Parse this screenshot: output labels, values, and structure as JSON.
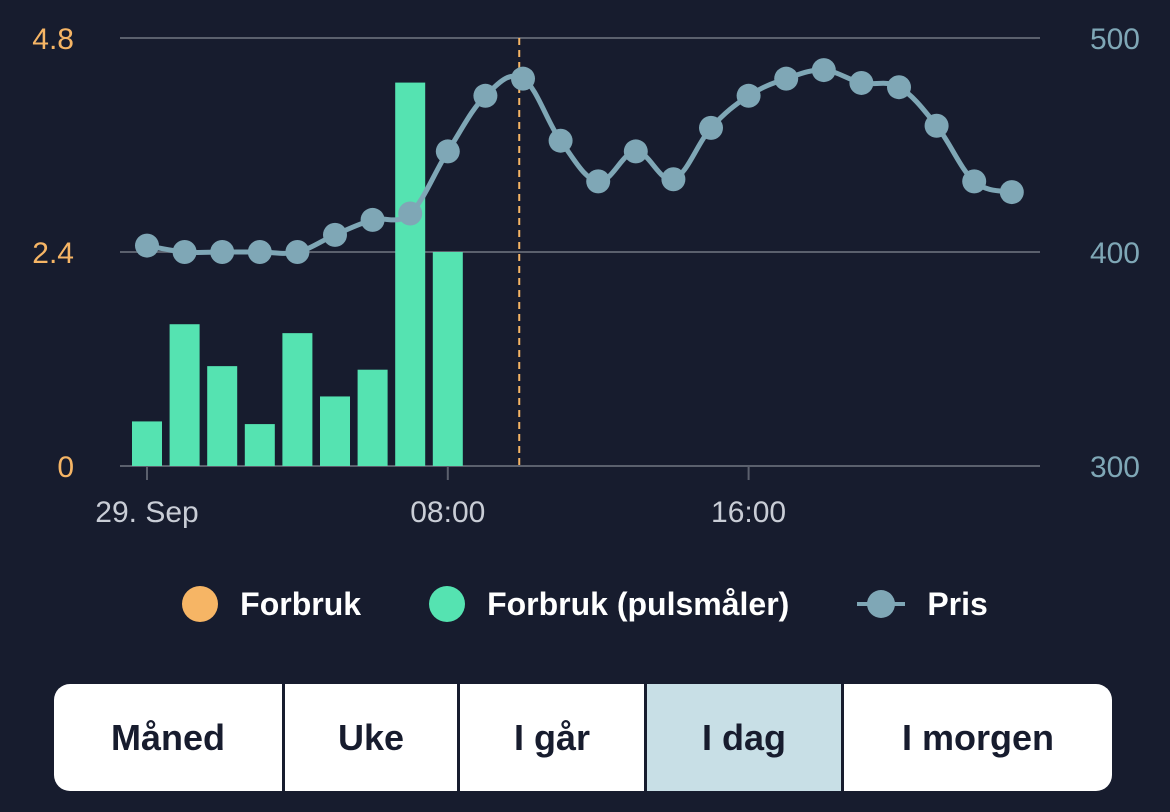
{
  "colors": {
    "background": "#171c2e",
    "forbruk": "#f6b565",
    "forbruk_pulsmaler": "#55e3b1",
    "pris": "#7fa7b6",
    "grid": "#5b606d",
    "active_tab": "#c8dfe6"
  },
  "chart_data": {
    "type": "bar",
    "x_ticks": [
      "29. Sep",
      "08:00",
      "16:00"
    ],
    "y_left": {
      "ticks": [
        "0",
        "2.4",
        "4.8"
      ],
      "ylim": [
        0,
        4.8
      ]
    },
    "y_right": {
      "ticks": [
        "300",
        "400",
        "500"
      ],
      "ylim": [
        300,
        500
      ]
    },
    "current_time_hour": 9.9,
    "series": [
      {
        "name": "Forbruk (pulsmåler)",
        "type": "bar",
        "axis": "left",
        "hours": [
          0,
          1,
          2,
          3,
          4,
          5,
          6,
          7,
          8
        ],
        "values": [
          0.5,
          1.59,
          1.12,
          0.47,
          1.49,
          0.78,
          1.08,
          4.3,
          2.4
        ]
      },
      {
        "name": "Pris",
        "type": "line",
        "axis": "right",
        "hours": [
          0,
          1,
          2,
          3,
          4,
          5,
          6,
          7,
          8,
          9,
          10,
          11,
          12,
          13,
          14,
          15,
          16,
          17,
          18,
          19,
          20,
          21,
          22,
          23
        ],
        "values": [
          403,
          400,
          400,
          400,
          400,
          408,
          415,
          418,
          447,
          473,
          481,
          452,
          433,
          447,
          434,
          458,
          473,
          481,
          485,
          479,
          477,
          459,
          433,
          428
        ]
      }
    ]
  },
  "legend": {
    "forbruk": "Forbruk",
    "forbruk_pulsmaler": "Forbruk (pulsmåler)",
    "pris": "Pris"
  },
  "tabs": [
    {
      "label": "Måned",
      "active": false
    },
    {
      "label": "Uke",
      "active": false
    },
    {
      "label": "I går",
      "active": false
    },
    {
      "label": "I dag",
      "active": true
    },
    {
      "label": "I morgen",
      "active": false
    }
  ]
}
